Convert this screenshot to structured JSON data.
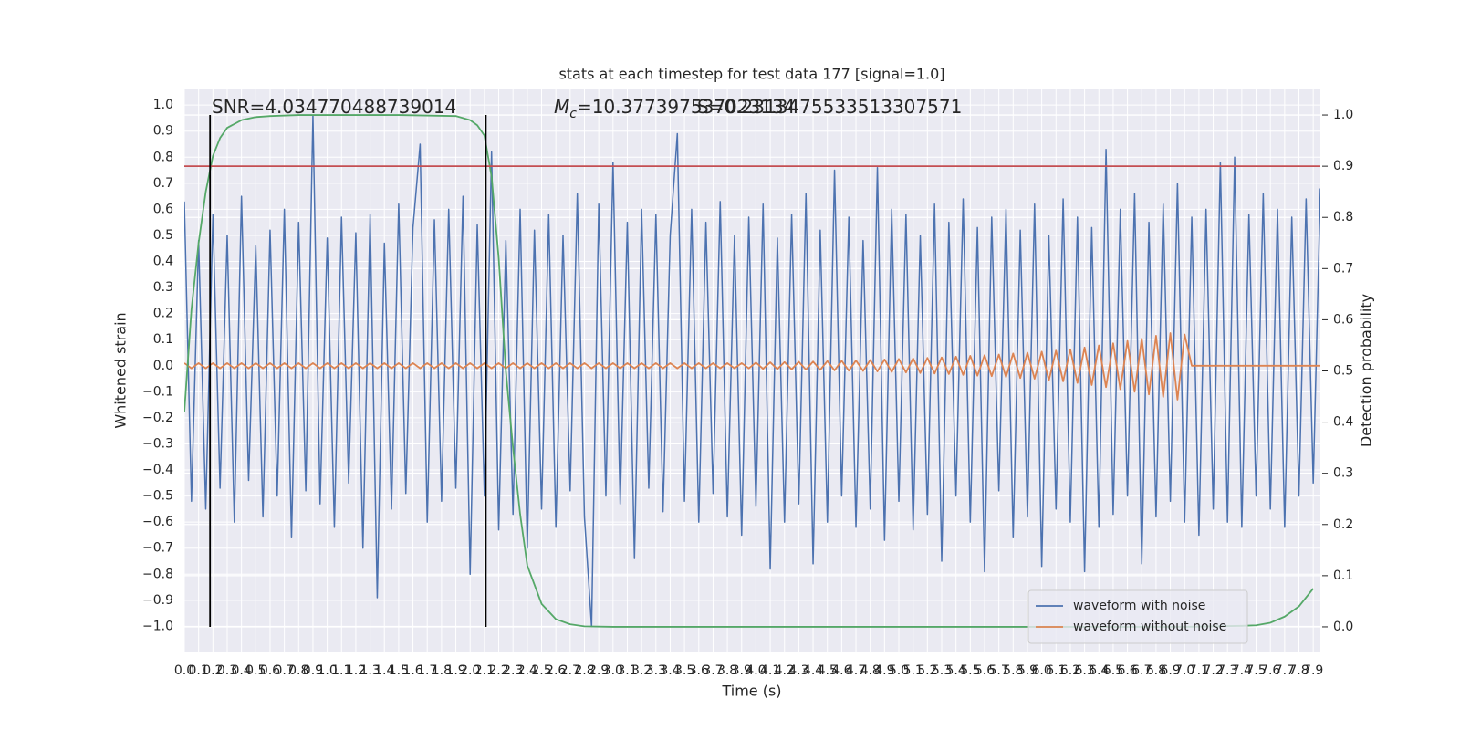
{
  "chart_data": {
    "type": "line",
    "title": "stats at each timestep for test data 177 [signal=1.0]",
    "xlabel": "Time (s)",
    "ylabel": "Whitened strain",
    "y2label": "Detection probability",
    "xlim": [
      0,
      7.95
    ],
    "ylim": [
      -1.1,
      1.06
    ],
    "y2lim": [
      -0.05,
      1.05
    ],
    "grid": true,
    "legend": "lower right",
    "background": "#eaeaf2",
    "xticks": [
      {
        "value": 0,
        "label": "0.0"
      },
      0.1,
      0.2,
      0.3,
      0.4,
      0.5,
      0.6,
      0.7,
      0.8,
      0.9,
      {
        "value": 1,
        "label": "1.0"
      },
      1.1,
      1.2,
      1.3,
      1.4,
      1.5,
      1.6,
      1.7,
      1.8,
      1.9,
      {
        "value": 2,
        "label": "2.0"
      },
      2.1,
      2.2,
      2.3,
      2.4,
      2.5,
      2.6,
      2.7,
      2.8,
      2.9,
      {
        "value": 3,
        "label": "3.0"
      },
      3.1,
      3.2,
      3.3,
      3.4,
      3.5,
      3.6,
      3.7,
      3.8,
      3.9,
      {
        "value": 4,
        "label": "4.0"
      },
      4.1,
      4.2,
      4.3,
      4.4,
      4.5,
      4.6,
      4.7,
      4.8,
      4.9,
      {
        "value": 5,
        "label": "5.0"
      },
      5.1,
      5.2,
      5.3,
      5.4,
      5.5,
      5.6,
      5.7,
      5.8,
      5.9,
      {
        "value": 6,
        "label": "6.0"
      },
      6.1,
      6.2,
      6.3,
      6.4,
      6.5,
      6.6,
      6.7,
      6.8,
      6.9,
      {
        "value": 7,
        "label": "7.0"
      },
      7.1,
      7.2,
      7.3,
      7.4,
      7.5,
      7.6,
      7.7,
      7.8,
      7.9
    ],
    "yticks": [
      {
        "value": -1,
        "label": "−1.0"
      },
      {
        "value": -0.9,
        "label": "−0.9"
      },
      {
        "value": -0.8,
        "label": "−0.8"
      },
      {
        "value": -0.7,
        "label": "−0.7"
      },
      {
        "value": -0.6,
        "label": "−0.6"
      },
      {
        "value": -0.5,
        "label": "−0.5"
      },
      {
        "value": -0.4,
        "label": "−0.4"
      },
      {
        "value": -0.3,
        "label": "−0.3"
      },
      {
        "value": -0.2,
        "label": "−0.2"
      },
      {
        "value": -0.1,
        "label": "−0.1"
      },
      {
        "value": 0,
        "label": "0.0"
      },
      0.1,
      0.2,
      0.3,
      0.4,
      0.5,
      0.6,
      0.7,
      0.8,
      0.9,
      {
        "value": 1,
        "label": "1.0"
      }
    ],
    "y2ticks": [
      {
        "value": 0,
        "label": "0.0"
      },
      0.1,
      0.2,
      0.3,
      0.4,
      0.5,
      0.6,
      0.7,
      0.8,
      0.9,
      {
        "value": 1,
        "label": "1.0"
      }
    ],
    "x": [
      0,
      0.05,
      0.1,
      0.15,
      0.2,
      0.25,
      0.3,
      0.35,
      0.4,
      0.45,
      0.5,
      0.55,
      0.6,
      0.65,
      0.7,
      0.75,
      0.8,
      0.85,
      0.9,
      0.95,
      1,
      1.05,
      1.1,
      1.15,
      1.2,
      1.25,
      1.3,
      1.35,
      1.4,
      1.45,
      1.5,
      1.55,
      1.6,
      1.65,
      1.7,
      1.75,
      1.8,
      1.85,
      1.9,
      1.95,
      2,
      2.05,
      2.1,
      2.15,
      2.2,
      2.25,
      2.3,
      2.35,
      2.4,
      2.45,
      2.5,
      2.55,
      2.6,
      2.65,
      2.7,
      2.75,
      2.8,
      2.85,
      2.9,
      2.95,
      3,
      3.05,
      3.1,
      3.15,
      3.2,
      3.25,
      3.3,
      3.35,
      3.4,
      3.45,
      3.5,
      3.55,
      3.6,
      3.65,
      3.7,
      3.75,
      3.8,
      3.85,
      3.9,
      3.95,
      4,
      4.05,
      4.1,
      4.15,
      4.2,
      4.25,
      4.3,
      4.35,
      4.4,
      4.45,
      4.5,
      4.55,
      4.6,
      4.65,
      4.7,
      4.75,
      4.8,
      4.85,
      4.9,
      4.95,
      5,
      5.05,
      5.1,
      5.15,
      5.2,
      5.25,
      5.3,
      5.35,
      5.4,
      5.45,
      5.5,
      5.55,
      5.6,
      5.65,
      5.7,
      5.75,
      5.8,
      5.85,
      5.9,
      5.95,
      6,
      6.05,
      6.1,
      6.15,
      6.2,
      6.25,
      6.3,
      6.35,
      6.4,
      6.45,
      6.5,
      6.55,
      6.6,
      6.65,
      6.7,
      6.75,
      6.8,
      6.85,
      6.9,
      6.95,
      7,
      7.05,
      7.1,
      7.15,
      7.2,
      7.25,
      7.3,
      7.35,
      7.4,
      7.45,
      7.5,
      7.55,
      7.6,
      7.65,
      7.7,
      7.75,
      7.8,
      7.85,
      7.9,
      7.95
    ],
    "series": [
      {
        "name": "waveform with noise",
        "color": "#4c72b0",
        "values": [
          0.63,
          -0.52,
          0.48,
          -0.55,
          0.58,
          -0.47,
          0.5,
          -0.6,
          0.65,
          -0.44,
          0.46,
          -0.58,
          0.52,
          -0.5,
          0.6,
          -0.66,
          0.55,
          -0.48,
          0.96,
          -0.53,
          0.49,
          -0.62,
          0.57,
          -0.45,
          0.51,
          -0.7,
          0.58,
          -0.89,
          0.47,
          -0.55,
          0.62,
          -0.49,
          0.53,
          0.85,
          -0.6,
          0.56,
          -0.52,
          0.6,
          -0.47,
          0.65,
          -0.8,
          0.54,
          -0.5,
          0.82,
          -0.63,
          0.48,
          -0.57,
          0.6,
          -0.7,
          0.52,
          -0.55,
          0.58,
          -0.62,
          0.5,
          -0.48,
          0.66,
          -0.58,
          -1.0,
          0.62,
          -0.5,
          0.78,
          -0.53,
          0.55,
          -0.74,
          0.6,
          -0.47,
          0.58,
          -0.56,
          0.5,
          0.89,
          -0.52,
          0.6,
          -0.6,
          0.55,
          -0.49,
          0.63,
          -0.58,
          0.5,
          -0.65,
          0.57,
          -0.54,
          0.62,
          -0.78,
          0.49,
          -0.6,
          0.58,
          -0.53,
          0.66,
          -0.76,
          0.52,
          -0.6,
          0.75,
          -0.5,
          0.57,
          -0.62,
          0.48,
          -0.55,
          0.76,
          -0.67,
          0.6,
          -0.52,
          0.58,
          -0.63,
          0.5,
          -0.57,
          0.62,
          -0.75,
          0.55,
          -0.5,
          0.64,
          -0.6,
          0.53,
          -0.79,
          0.57,
          -0.48,
          0.6,
          -0.66,
          0.52,
          -0.58,
          0.62,
          -0.77,
          0.5,
          -0.55,
          0.64,
          -0.6,
          0.57,
          -0.79,
          0.53,
          -0.62,
          0.83,
          -0.57,
          0.6,
          -0.5,
          0.66,
          -0.76,
          0.55,
          -0.58,
          0.62,
          -0.52,
          0.7,
          -0.6,
          0.57,
          -0.65,
          0.6,
          -0.55,
          0.78,
          -0.6,
          0.8,
          -0.62,
          0.58,
          -0.5,
          0.66,
          -0.55,
          0.6,
          -0.62,
          0.57,
          -0.5,
          0.64,
          -0.45,
          0.68
        ]
      },
      {
        "name": "waveform without noise",
        "color": "#dd8452",
        "values": [
          0.01,
          -0.01,
          0.01,
          -0.01,
          0.01,
          -0.01,
          0.01,
          -0.01,
          0.01,
          -0.01,
          0.01,
          -0.01,
          0.01,
          -0.01,
          0.01,
          -0.01,
          0.01,
          -0.01,
          0.01,
          -0.01,
          0.01,
          -0.01,
          0.01,
          -0.01,
          0.01,
          -0.01,
          0.01,
          -0.01,
          0.01,
          -0.01,
          0.01,
          -0.01,
          0.01,
          -0.01,
          0.01,
          -0.01,
          0.01,
          -0.01,
          0.01,
          -0.01,
          0.01,
          -0.01,
          0.01,
          -0.01,
          0.01,
          -0.01,
          0.01,
          -0.01,
          0.01,
          -0.01,
          0.01,
          -0.01,
          0.01,
          -0.01,
          0.01,
          -0.01,
          0.01,
          -0.01,
          0.01,
          -0.01,
          0.01,
          -0.01,
          0.01,
          -0.01,
          0.01,
          -0.01,
          0.01,
          -0.01,
          0.01,
          -0.01,
          0.01,
          -0.01,
          0.01,
          -0.01,
          0.01,
          -0.01,
          0.01,
          -0.01,
          0.01,
          -0.01,
          0.012,
          -0.012,
          0.013,
          -0.013,
          0.014,
          -0.014,
          0.015,
          -0.015,
          0.016,
          -0.016,
          0.018,
          -0.018,
          0.019,
          -0.019,
          0.02,
          -0.02,
          0.022,
          -0.022,
          0.024,
          -0.024,
          0.026,
          -0.026,
          0.028,
          -0.028,
          0.03,
          -0.03,
          0.032,
          -0.032,
          0.035,
          -0.035,
          0.038,
          -0.038,
          0.04,
          -0.04,
          0.043,
          -0.043,
          0.047,
          -0.047,
          0.05,
          -0.05,
          0.054,
          -0.056,
          0.058,
          -0.06,
          0.063,
          -0.066,
          0.07,
          -0.074,
          0.078,
          -0.082,
          0.086,
          -0.09,
          0.095,
          -0.1,
          0.104,
          -0.11,
          0.115,
          -0.12,
          0.125,
          -0.13,
          0.12,
          0,
          0,
          0,
          0,
          0,
          0,
          0,
          0,
          0,
          0,
          0,
          0,
          0,
          0,
          0,
          0,
          0,
          0,
          0
        ]
      },
      {
        "axis": "y2",
        "color": "#55a868",
        "x": [
          0,
          0.05,
          0.1,
          0.15,
          0.2,
          0.25,
          0.3,
          0.4,
          0.5,
          0.6,
          0.8,
          1.0,
          1.5,
          1.9,
          2.0,
          2.05,
          2.1,
          2.15,
          2.2,
          2.25,
          2.3,
          2.35,
          2.4,
          2.5,
          2.6,
          2.7,
          2.8,
          3.0,
          4.0,
          5.0,
          6.0,
          7.0,
          7.4,
          7.5,
          7.6,
          7.7,
          7.8,
          7.9
        ],
        "values": [
          0.42,
          0.62,
          0.75,
          0.85,
          0.92,
          0.955,
          0.975,
          0.99,
          0.996,
          0.998,
          1.0,
          1.0,
          1.0,
          0.998,
          0.99,
          0.98,
          0.96,
          0.88,
          0.72,
          0.5,
          0.35,
          0.22,
          0.12,
          0.045,
          0.015,
          0.005,
          0.001,
          0,
          0,
          0,
          0,
          0,
          0.002,
          0.003,
          0.008,
          0.02,
          0.04,
          0.075
        ]
      }
    ],
    "hlines": [
      {
        "value": 0.9,
        "axis": "y2",
        "color": "#c44e52"
      }
    ],
    "vlines": [
      {
        "x": 0.18,
        "ymin": 0,
        "ymax": 1,
        "axis": "y2",
        "color": "#000000"
      },
      {
        "x": 2.11,
        "ymin": 0,
        "ymax": 1,
        "axis": "y2",
        "color": "#000000"
      }
    ],
    "annotations": [
      "SNR=4.034770488739014",
      {
        "symbol": "M",
        "subscript": "c",
        "text": "=10.377397537023134"
      },
      "S=0.2313475533513307571"
    ]
  }
}
